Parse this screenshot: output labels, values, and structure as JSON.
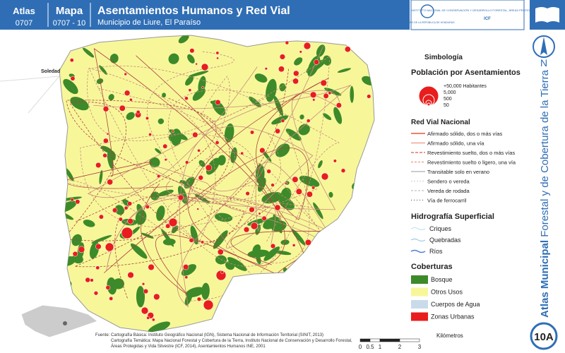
{
  "header": {
    "atlas_label": "Atlas",
    "atlas_code": "0707",
    "map_label": "Mapa",
    "map_code": "0707 - 10",
    "title": "Asentamientos Humanos y Red Vial",
    "subtitle": "Municipio de Liure, El Paraíso"
  },
  "logos": {
    "government": "GOBIERNO DE LA REPÚBLICA DE HONDURAS",
    "institute": "INSTITUTO NACIONAL DE CONSERVACIÓN Y DESARROLLO FORESTAL, ÁREAS PROTEGIDAS Y VIDA SILVESTRE",
    "institute_short": "ICF"
  },
  "side": {
    "north": "N",
    "atlas_bold": "Atlas Municipal",
    "atlas_rest": " Forestal y de Cobertura de la Tierra",
    "badge": "10A"
  },
  "map": {
    "place_label": "Soledad"
  },
  "legend": {
    "title": "Simbología",
    "population": {
      "title": "Población por Asentamientos",
      "sizes": [
        "+50,000 Habitantes",
        "5,000",
        "500",
        "50"
      ]
    },
    "roads": {
      "title": "Red Vial Nacional",
      "items": [
        "Afirmado sólido, dos o más vías",
        "Afirmado sólido, una vía",
        "Revestimiento suelto, dos o más vías",
        "Revestimiento suelto o ligero, una vía",
        "Transitable solo en verano",
        "Sendero o vereda",
        "Vereda de rodada",
        "Vía de ferrocarril"
      ]
    },
    "hydro": {
      "title": "Hidrografía Superficial",
      "items": [
        "Criques",
        "Quebradas",
        "Ríos"
      ]
    },
    "cover": {
      "title": "Coberturas",
      "items": [
        "Bosque",
        "Otros Usos",
        "Cuerpos de Agua",
        "Zonas Urbanas"
      ]
    }
  },
  "source": {
    "lines": [
      "Fuente: Cartografía Básica: Instituto Geográfico Nacional (IGN), Sistema Nacional de Información Territorial (SINIT, 2013)",
      "Cartografía Temática: Mapa Nacional Forestal y Cobertura de la Tierra, Instituto Nacional de Conservación y Desarrollo Forestal,",
      "Áreas Protegidas y Vida Silvestre (ICF, 2014), Asentamientos Humanos INE, 2001"
    ]
  },
  "scale": {
    "unit": "Kilómetros",
    "labels": [
      "0",
      "0.5",
      "1",
      "2",
      "3"
    ]
  }
}
